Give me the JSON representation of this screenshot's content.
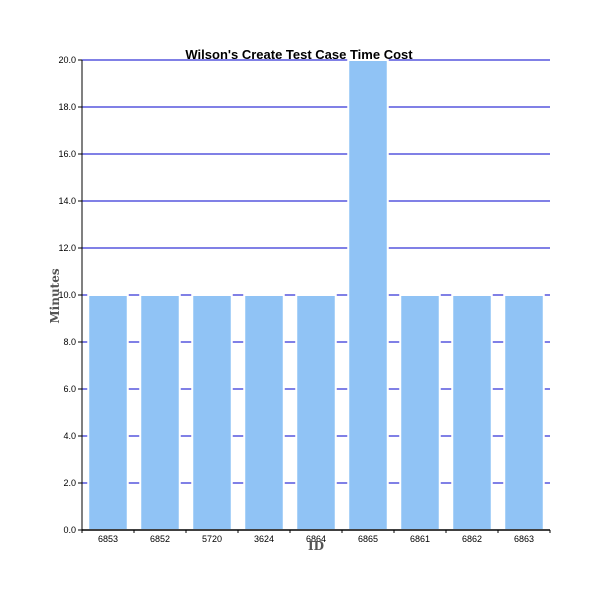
{
  "chart_data": {
    "type": "bar",
    "title": "Wilson's Create Test Case Time Cost",
    "xlabel": "ID",
    "ylabel": "Minutes",
    "categories": [
      "6853",
      "6852",
      "5720",
      "3624",
      "6864",
      "6865",
      "6861",
      "6862",
      "6863"
    ],
    "values": [
      10,
      10,
      10,
      10,
      10,
      20,
      10,
      10,
      10
    ],
    "ylim": [
      0,
      20
    ],
    "yticks": [
      "0.0",
      "2.0",
      "4.0",
      "6.0",
      "8.0",
      "10.0",
      "12.0",
      "14.0",
      "16.0",
      "18.0",
      "20.0"
    ],
    "grid": true,
    "legend": "none",
    "colors": {
      "bar_fill": "#90c3f5",
      "bar_stroke": "#ffffff",
      "gridline": "#0000cc",
      "axis": "#000000",
      "axis_label": "#555555"
    }
  }
}
